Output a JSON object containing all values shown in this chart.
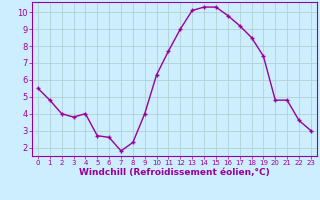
{
  "x": [
    0,
    1,
    2,
    3,
    4,
    5,
    6,
    7,
    8,
    9,
    10,
    11,
    12,
    13,
    14,
    15,
    16,
    17,
    18,
    19,
    20,
    21,
    22,
    23
  ],
  "y": [
    5.5,
    4.8,
    4.0,
    3.8,
    4.0,
    2.7,
    2.6,
    1.8,
    2.3,
    4.0,
    6.3,
    7.7,
    9.0,
    10.1,
    10.3,
    10.3,
    9.8,
    9.2,
    8.5,
    7.4,
    4.8,
    4.8,
    3.6,
    3.0
  ],
  "line_color": "#990099",
  "marker": "+",
  "marker_size": 3,
  "bg_color": "#cceeff",
  "grid_color": "#aacccc",
  "xlabel": "Windchill (Refroidissement éolien,°C)",
  "xlabel_color": "#990099",
  "tick_color": "#990099",
  "label_color": "#990099",
  "ylim": [
    1.5,
    10.6
  ],
  "xlim": [
    -0.5,
    23.5
  ],
  "yticks": [
    2,
    3,
    4,
    5,
    6,
    7,
    8,
    9,
    10
  ],
  "xticks": [
    0,
    1,
    2,
    3,
    4,
    5,
    6,
    7,
    8,
    9,
    10,
    11,
    12,
    13,
    14,
    15,
    16,
    17,
    18,
    19,
    20,
    21,
    22,
    23
  ],
  "linewidth": 1.0,
  "tick_labelsize": 6.0,
  "xlabel_fontsize": 6.5
}
